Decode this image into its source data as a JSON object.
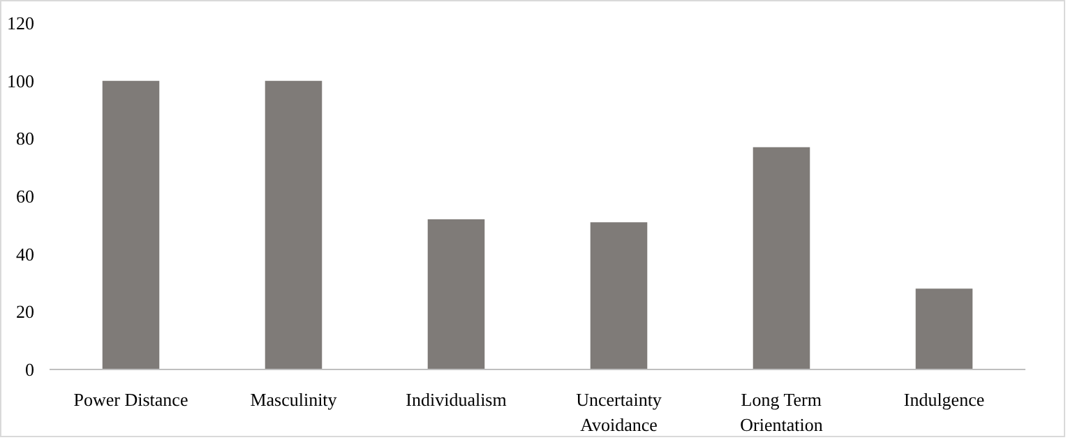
{
  "chart_data": {
    "type": "bar",
    "categories": [
      "Power Distance",
      "Masculinity",
      "Individualism",
      "Uncertainty Avoidance",
      "Long Term Orientation",
      "Indulgence"
    ],
    "values": [
      100,
      100,
      52,
      51,
      77,
      28
    ],
    "color": "#7f7b78",
    "ylim": [
      0,
      120
    ],
    "yticks": [
      0,
      20,
      40,
      60,
      80,
      100,
      120
    ],
    "grid": false
  }
}
